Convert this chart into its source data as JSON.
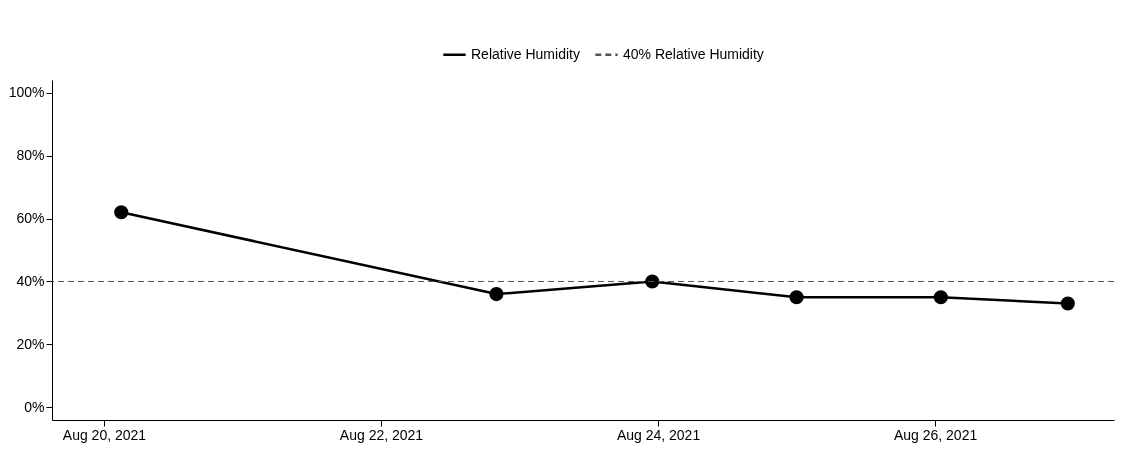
{
  "chart_data": {
    "type": "line",
    "x": [
      "2021-08-20T03:00",
      "2021-08-22T20:00",
      "2021-08-23T23:00",
      "2021-08-25T00:00",
      "2021-08-26T01:00",
      "2021-08-26T23:00"
    ],
    "series": [
      {
        "name": "Relative Humidity",
        "color": "#000000",
        "values": [
          62,
          36,
          40,
          35,
          35,
          33
        ]
      }
    ],
    "xlim": [
      "2021-08-19T15:00",
      "2021-08-27T07:00"
    ],
    "xticks": [
      {
        "value": "2021-08-20",
        "label": "Aug 20, 2021"
      },
      {
        "value": "2021-08-22",
        "label": "Aug 22, 2021"
      },
      {
        "value": "2021-08-24",
        "label": "Aug 24, 2021"
      },
      {
        "value": "2021-08-26",
        "label": "Aug 26, 2021"
      }
    ],
    "ylim": [
      -4,
      104
    ],
    "yticks": [
      {
        "value": 0,
        "label": "0%"
      },
      {
        "value": 20,
        "label": "20%"
      },
      {
        "value": 40,
        "label": "40%"
      },
      {
        "value": 60,
        "label": "60%"
      },
      {
        "value": 80,
        "label": "80%"
      },
      {
        "value": 100,
        "label": "100%"
      }
    ],
    "ref_lines": [
      {
        "axis": "y",
        "value": 40,
        "label": "40% Relative Humidity",
        "color": "#555555",
        "line_style": "dashed"
      }
    ],
    "marker": "circle",
    "line_style": "solid",
    "legend": "top",
    "grid": false
  }
}
